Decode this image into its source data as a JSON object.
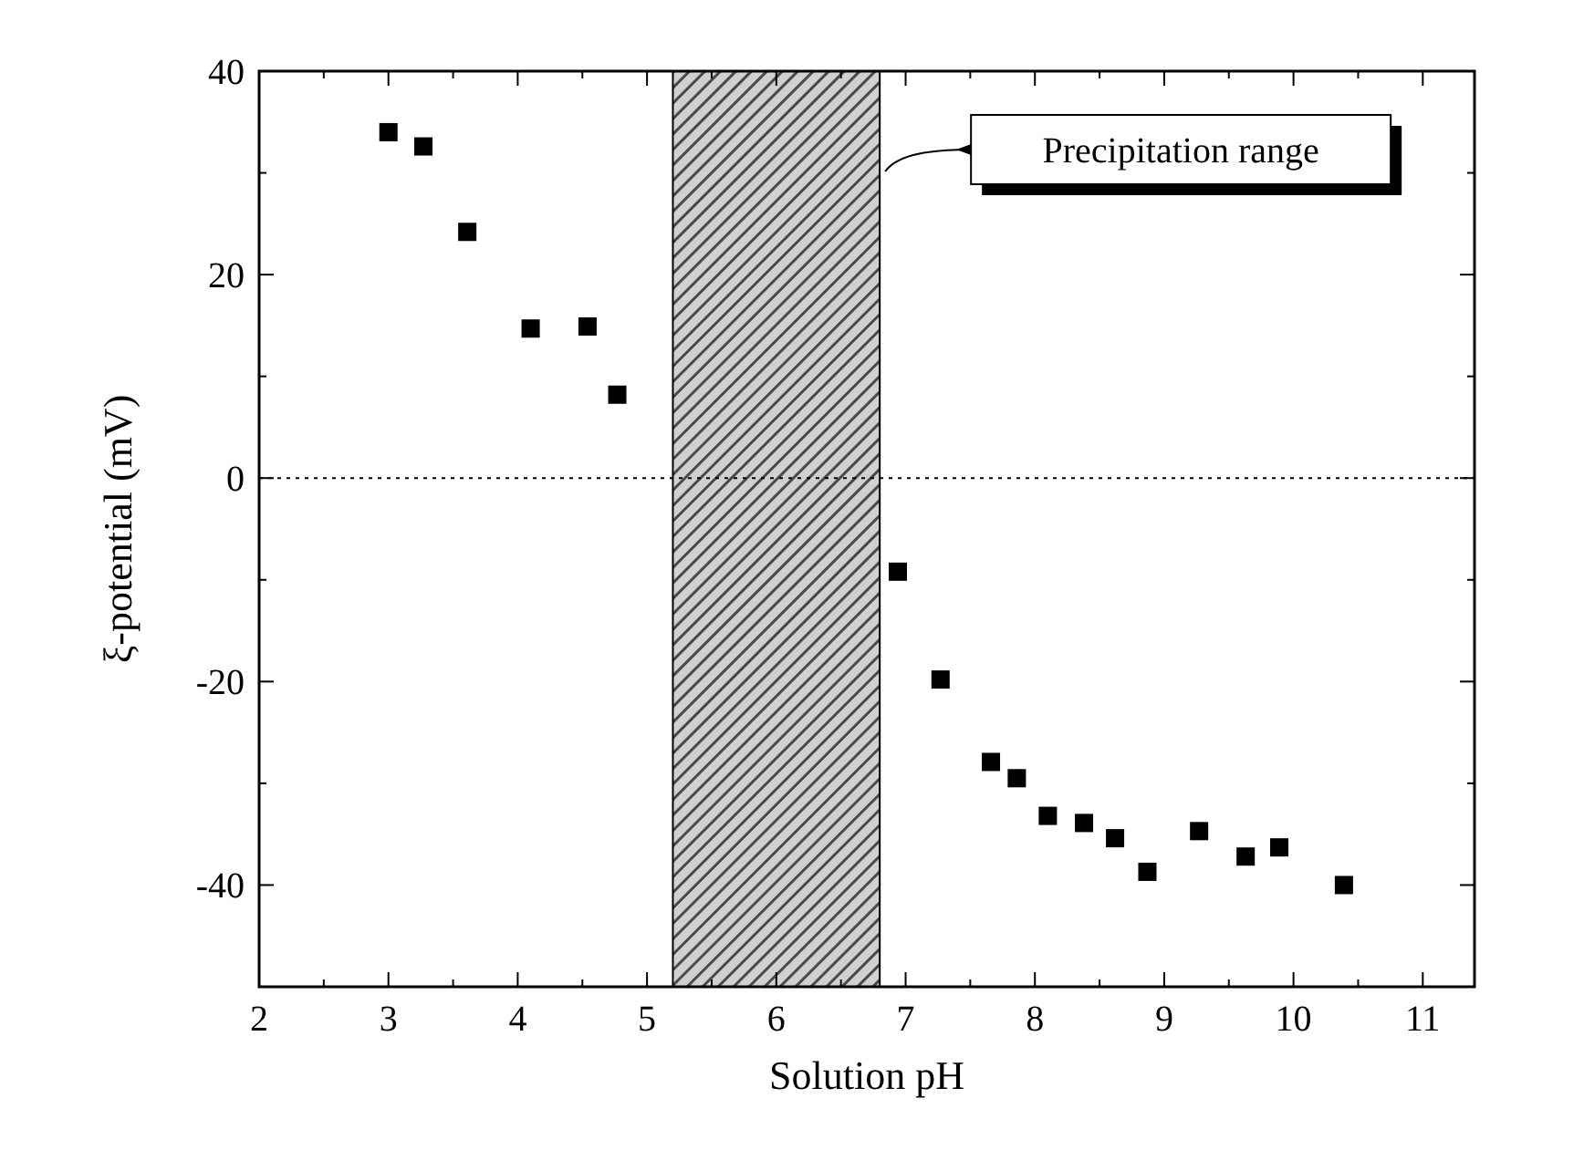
{
  "chart_data": {
    "type": "scatter",
    "xlabel": "Solution pH",
    "ylabel": "ξ-potential  (mV)",
    "xlim": [
      2,
      11.4
    ],
    "ylim": [
      -50,
      40
    ],
    "xticks": [
      2,
      {
        "value": 2.5,
        "label": null
      },
      3,
      {
        "value": 3.5,
        "label": null
      },
      4,
      {
        "value": 4.5,
        "label": null
      },
      5,
      {
        "value": 5.5,
        "label": null
      },
      6,
      {
        "value": 6.5,
        "label": null
      },
      7,
      {
        "value": 7.5,
        "label": null
      },
      8,
      {
        "value": 8.5,
        "label": null
      },
      9,
      {
        "value": 9.5,
        "label": null
      },
      10,
      {
        "value": 10.5,
        "label": null
      },
      11
    ],
    "yticks": [
      {
        "value": -50,
        "label": null
      },
      -40,
      {
        "value": -30,
        "label": null
      },
      -20,
      {
        "value": -10,
        "label": null
      },
      0,
      {
        "value": 10,
        "label": null
      },
      20,
      {
        "value": 30,
        "label": null
      },
      40
    ],
    "marker": "square",
    "grid": false,
    "series": [
      {
        "color": "#000000",
        "x": [
          3.0,
          3.27,
          3.61,
          4.1,
          4.54,
          4.77,
          6.94,
          7.27,
          7.66,
          7.86,
          8.1,
          8.38,
          8.62,
          8.87,
          9.27,
          9.63,
          9.89,
          10.39
        ],
        "values": [
          34.0,
          32.6,
          24.2,
          14.7,
          14.9,
          8.2,
          -9.2,
          -19.8,
          -27.9,
          -29.5,
          -33.2,
          -33.9,
          -35.4,
          -38.7,
          -34.7,
          -37.2,
          -36.3,
          -40.0
        ]
      }
    ],
    "ref_lines": [
      {
        "axis": "y",
        "value": 0,
        "line_style": "dotted",
        "color": "#000000"
      }
    ],
    "bands": [
      {
        "axis": "x",
        "from": 5.2,
        "to": 6.8,
        "label": "Precipitation range",
        "color": "#000000"
      }
    ]
  }
}
